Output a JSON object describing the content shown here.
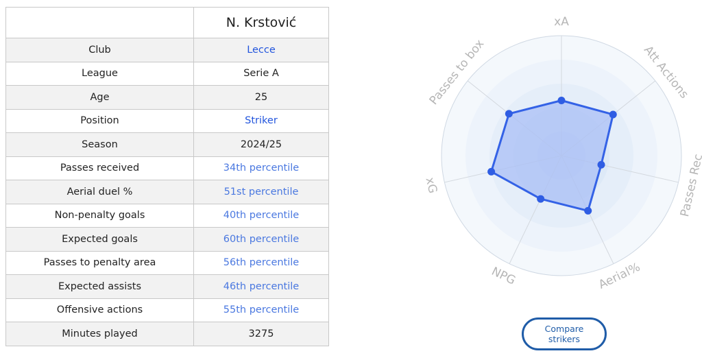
{
  "player": {
    "name": "N. Krstović"
  },
  "rows": [
    {
      "label": "Club",
      "value": "Lecce",
      "style": "link"
    },
    {
      "label": "League",
      "value": "Serie A",
      "style": "plain"
    },
    {
      "label": "Age",
      "value": "25",
      "style": "plain"
    },
    {
      "label": "Position",
      "value": "Striker",
      "style": "link"
    },
    {
      "label": "Season",
      "value": "2024/25",
      "style": "plain"
    },
    {
      "label": "Passes received",
      "value": "34th percentile",
      "style": "pct"
    },
    {
      "label": "Aerial duel %",
      "value": "51st percentile",
      "style": "pct"
    },
    {
      "label": "Non-penalty goals",
      "value": "40th percentile",
      "style": "pct"
    },
    {
      "label": "Expected goals",
      "value": "60th percentile",
      "style": "pct"
    },
    {
      "label": "Passes to penalty area",
      "value": "56th percentile",
      "style": "pct"
    },
    {
      "label": "Expected assists",
      "value": "46th percentile",
      "style": "pct"
    },
    {
      "label": "Offensive actions",
      "value": "55th percentile",
      "style": "pct"
    },
    {
      "label": "Minutes played",
      "value": "3275",
      "style": "plain"
    }
  ],
  "chart_data": {
    "type": "radar",
    "axes": [
      "xA",
      "Att Actions",
      "Passes Rec",
      "Aerial%",
      "NPG",
      "xG",
      "Passes to box"
    ],
    "values": [
      46,
      55,
      34,
      51,
      40,
      60,
      56
    ],
    "range": [
      0,
      100
    ],
    "fill_color": "#a9bff5",
    "line_color": "#3462e6",
    "point_color": "#2f5de3"
  },
  "compare_button": {
    "label": "Compare strikers"
  },
  "colors": {
    "link": "#2255dd",
    "percentile": "#4a78e0",
    "button": "#1f5ca8"
  }
}
